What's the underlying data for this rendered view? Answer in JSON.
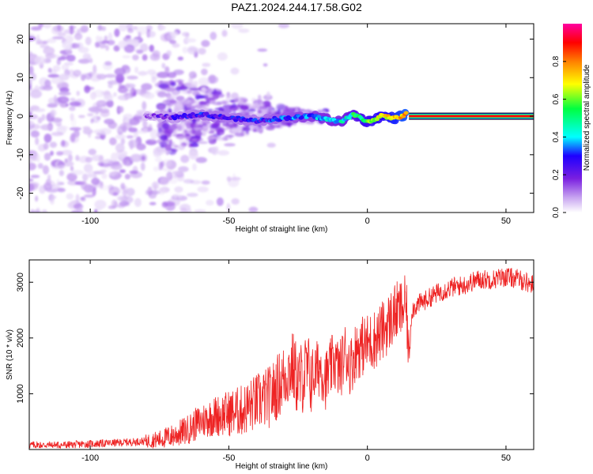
{
  "title": "PAZ1.2024.244.17.58.G02",
  "chart_data": [
    {
      "type": "heatmap",
      "xlabel": "Height of straight line (km)",
      "ylabel": "Frequency (Hz)",
      "xlim": [
        -122,
        60
      ],
      "ylim": [
        -25,
        24
      ],
      "xticks": [
        -100,
        -50,
        0,
        50
      ],
      "yticks": [
        -20,
        -10,
        0,
        10,
        20
      ],
      "colorbar": {
        "label": "Normalized spectral amplitude",
        "range": [
          0,
          1
        ],
        "ticks": [
          "0.0",
          "0.2",
          "0.4",
          "0.6",
          "0.8"
        ],
        "colormap": [
          "#ffffff",
          "#c7a3f0",
          "#7a1fe0",
          "#1e00ff",
          "#00ffff",
          "#00ff40",
          "#ffff00",
          "#ff8000",
          "#ff0000",
          "#ff00a0"
        ]
      },
      "ridge": [
        {
          "x": -80,
          "freq": 0.0,
          "amp": 0.15
        },
        {
          "x": -70,
          "freq": -0.3,
          "amp": 0.25
        },
        {
          "x": -60,
          "freq": 0.5,
          "amp": 0.3
        },
        {
          "x": -50,
          "freq": -0.5,
          "amp": 0.3
        },
        {
          "x": -40,
          "freq": -1.2,
          "amp": 0.3
        },
        {
          "x": -30,
          "freq": -0.5,
          "amp": 0.35
        },
        {
          "x": -20,
          "freq": 0.0,
          "amp": 0.4
        },
        {
          "x": -10,
          "freq": -1.5,
          "amp": 0.45
        },
        {
          "x": -5,
          "freq": 0.5,
          "amp": 0.5
        },
        {
          "x": 0,
          "freq": -1.5,
          "amp": 0.6
        },
        {
          "x": 5,
          "freq": 0.0,
          "amp": 0.65
        },
        {
          "x": 10,
          "freq": -0.5,
          "amp": 0.7
        },
        {
          "x": 14,
          "freq": 0.5,
          "amp": 0.75
        },
        {
          "x": 20,
          "freq": 0.0,
          "amp": 0.9
        },
        {
          "x": 60,
          "freq": 0.0,
          "amp": 0.95
        }
      ]
    },
    {
      "type": "line",
      "xlabel": "Height of straight line (km)",
      "ylabel": "SNR (10 * v/v)",
      "xlim": [
        -122,
        60
      ],
      "ylim": [
        0,
        3400
      ],
      "xticks": [
        -100,
        -50,
        0,
        50
      ],
      "yticks": [
        1000,
        2000,
        3000
      ],
      "series": [
        {
          "color": "#ee2222",
          "x": [
            -122,
            -110,
            -100,
            -90,
            -80,
            -75,
            -70,
            -65,
            -62,
            -58,
            -55,
            -50,
            -45,
            -40,
            -35,
            -30,
            -27,
            -25,
            -22,
            -20,
            -17,
            -15,
            -12,
            -10,
            -8,
            -6,
            -4,
            -2,
            0,
            2,
            4,
            6,
            8,
            10,
            12,
            14,
            15,
            16,
            18,
            20,
            25,
            30,
            35,
            40,
            45,
            50,
            55,
            60
          ],
          "y": [
            80,
            80,
            100,
            120,
            150,
            180,
            250,
            350,
            450,
            550,
            600,
            650,
            700,
            850,
            950,
            1300,
            1500,
            1200,
            1400,
            1300,
            1500,
            1250,
            1600,
            1400,
            1750,
            1500,
            1800,
            1850,
            1900,
            1950,
            2050,
            2150,
            2300,
            2450,
            2500,
            2600,
            1600,
            2500,
            2600,
            2650,
            2800,
            2900,
            2950,
            3050,
            3050,
            3100,
            3050,
            2950
          ]
        }
      ]
    }
  ]
}
